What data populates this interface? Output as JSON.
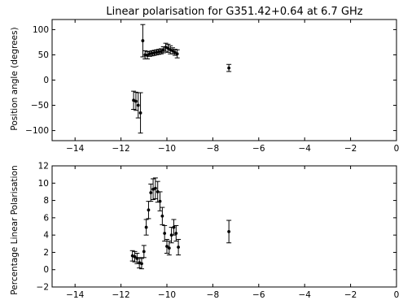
{
  "chart_data": [
    {
      "type": "scatter",
      "title": "Linear polarisation for G351.42+0.64 at 6.7 GHz",
      "xlabel": "",
      "ylabel": "Position angle (degrees)",
      "xlim": [
        -15,
        0
      ],
      "ylim": [
        -120,
        120
      ],
      "xticks": [
        -14,
        -12,
        -10,
        -8,
        -6,
        -4,
        -2,
        0
      ],
      "yticks": [
        -100,
        -50,
        0,
        50,
        100
      ],
      "x_tick_labels": [
        "−14",
        "−12",
        "−10",
        "−8",
        "−6",
        "−4",
        "−2",
        "0"
      ],
      "y_tick_labels": [
        "−100",
        "−50",
        "0",
        "50",
        "100"
      ],
      "grid": false,
      "points": [
        {
          "x": -11.45,
          "y": -40,
          "err": 18
        },
        {
          "x": -11.35,
          "y": -42,
          "err": 18
        },
        {
          "x": -11.25,
          "y": -50,
          "err": 25
        },
        {
          "x": -11.15,
          "y": -65,
          "err": 40
        },
        {
          "x": -11.05,
          "y": 78,
          "err": 32
        },
        {
          "x": -10.95,
          "y": 50,
          "err": 8
        },
        {
          "x": -10.85,
          "y": 49,
          "err": 7
        },
        {
          "x": -10.75,
          "y": 52,
          "err": 5
        },
        {
          "x": -10.65,
          "y": 53,
          "err": 5
        },
        {
          "x": -10.55,
          "y": 54,
          "err": 5
        },
        {
          "x": -10.45,
          "y": 55,
          "err": 5
        },
        {
          "x": -10.35,
          "y": 56,
          "err": 5
        },
        {
          "x": -10.25,
          "y": 57,
          "err": 5
        },
        {
          "x": -10.15,
          "y": 60,
          "err": 6
        },
        {
          "x": -10.05,
          "y": 65,
          "err": 8
        },
        {
          "x": -9.95,
          "y": 63,
          "err": 8
        },
        {
          "x": -9.85,
          "y": 60,
          "err": 8
        },
        {
          "x": -9.75,
          "y": 58,
          "err": 6
        },
        {
          "x": -9.65,
          "y": 55,
          "err": 6
        },
        {
          "x": -9.55,
          "y": 52,
          "err": 8
        },
        {
          "x": -7.3,
          "y": 24,
          "err": 7
        }
      ]
    },
    {
      "type": "scatter",
      "title": "",
      "xlabel": "",
      "ylabel": "Percentage Linear Polarisation",
      "xlim": [
        -15,
        0
      ],
      "ylim": [
        -2,
        12
      ],
      "xticks": [
        -14,
        -12,
        -10,
        -8,
        -6,
        -4,
        -2,
        0
      ],
      "yticks": [
        -2,
        0,
        2,
        4,
        6,
        8,
        10,
        12
      ],
      "x_tick_labels": [
        "−14",
        "−12",
        "−10",
        "−8",
        "−6",
        "−4",
        "−2",
        "0"
      ],
      "y_tick_labels": [
        "−2",
        "0",
        "2",
        "4",
        "6",
        "8",
        "10",
        "12"
      ],
      "grid": false,
      "points": [
        {
          "x": -11.5,
          "y": 1.6,
          "err": 0.6
        },
        {
          "x": -11.4,
          "y": 1.5,
          "err": 0.6
        },
        {
          "x": -11.3,
          "y": 1.3,
          "err": 0.6
        },
        {
          "x": -11.2,
          "y": 0.8,
          "err": 0.6
        },
        {
          "x": -11.1,
          "y": 0.7,
          "err": 0.6
        },
        {
          "x": -11.0,
          "y": 2.1,
          "err": 0.7
        },
        {
          "x": -10.9,
          "y": 4.9,
          "err": 0.9
        },
        {
          "x": -10.8,
          "y": 6.9,
          "err": 1.0
        },
        {
          "x": -10.7,
          "y": 8.9,
          "err": 1.0
        },
        {
          "x": -10.6,
          "y": 9.3,
          "err": 1.2
        },
        {
          "x": -10.5,
          "y": 9.4,
          "err": 1.2
        },
        {
          "x": -10.4,
          "y": 9.0,
          "err": 1.2
        },
        {
          "x": -10.3,
          "y": 7.9,
          "err": 1.1
        },
        {
          "x": -10.2,
          "y": 6.2,
          "err": 1.0
        },
        {
          "x": -10.1,
          "y": 4.2,
          "err": 0.9
        },
        {
          "x": -10.0,
          "y": 2.7,
          "err": 0.8
        },
        {
          "x": -9.9,
          "y": 2.5,
          "err": 0.8
        },
        {
          "x": -9.8,
          "y": 4.0,
          "err": 0.9
        },
        {
          "x": -9.7,
          "y": 4.9,
          "err": 0.9
        },
        {
          "x": -9.6,
          "y": 4.2,
          "err": 0.9
        },
        {
          "x": -9.5,
          "y": 2.6,
          "err": 0.9
        },
        {
          "x": -7.3,
          "y": 4.4,
          "err": 1.3
        }
      ]
    }
  ]
}
